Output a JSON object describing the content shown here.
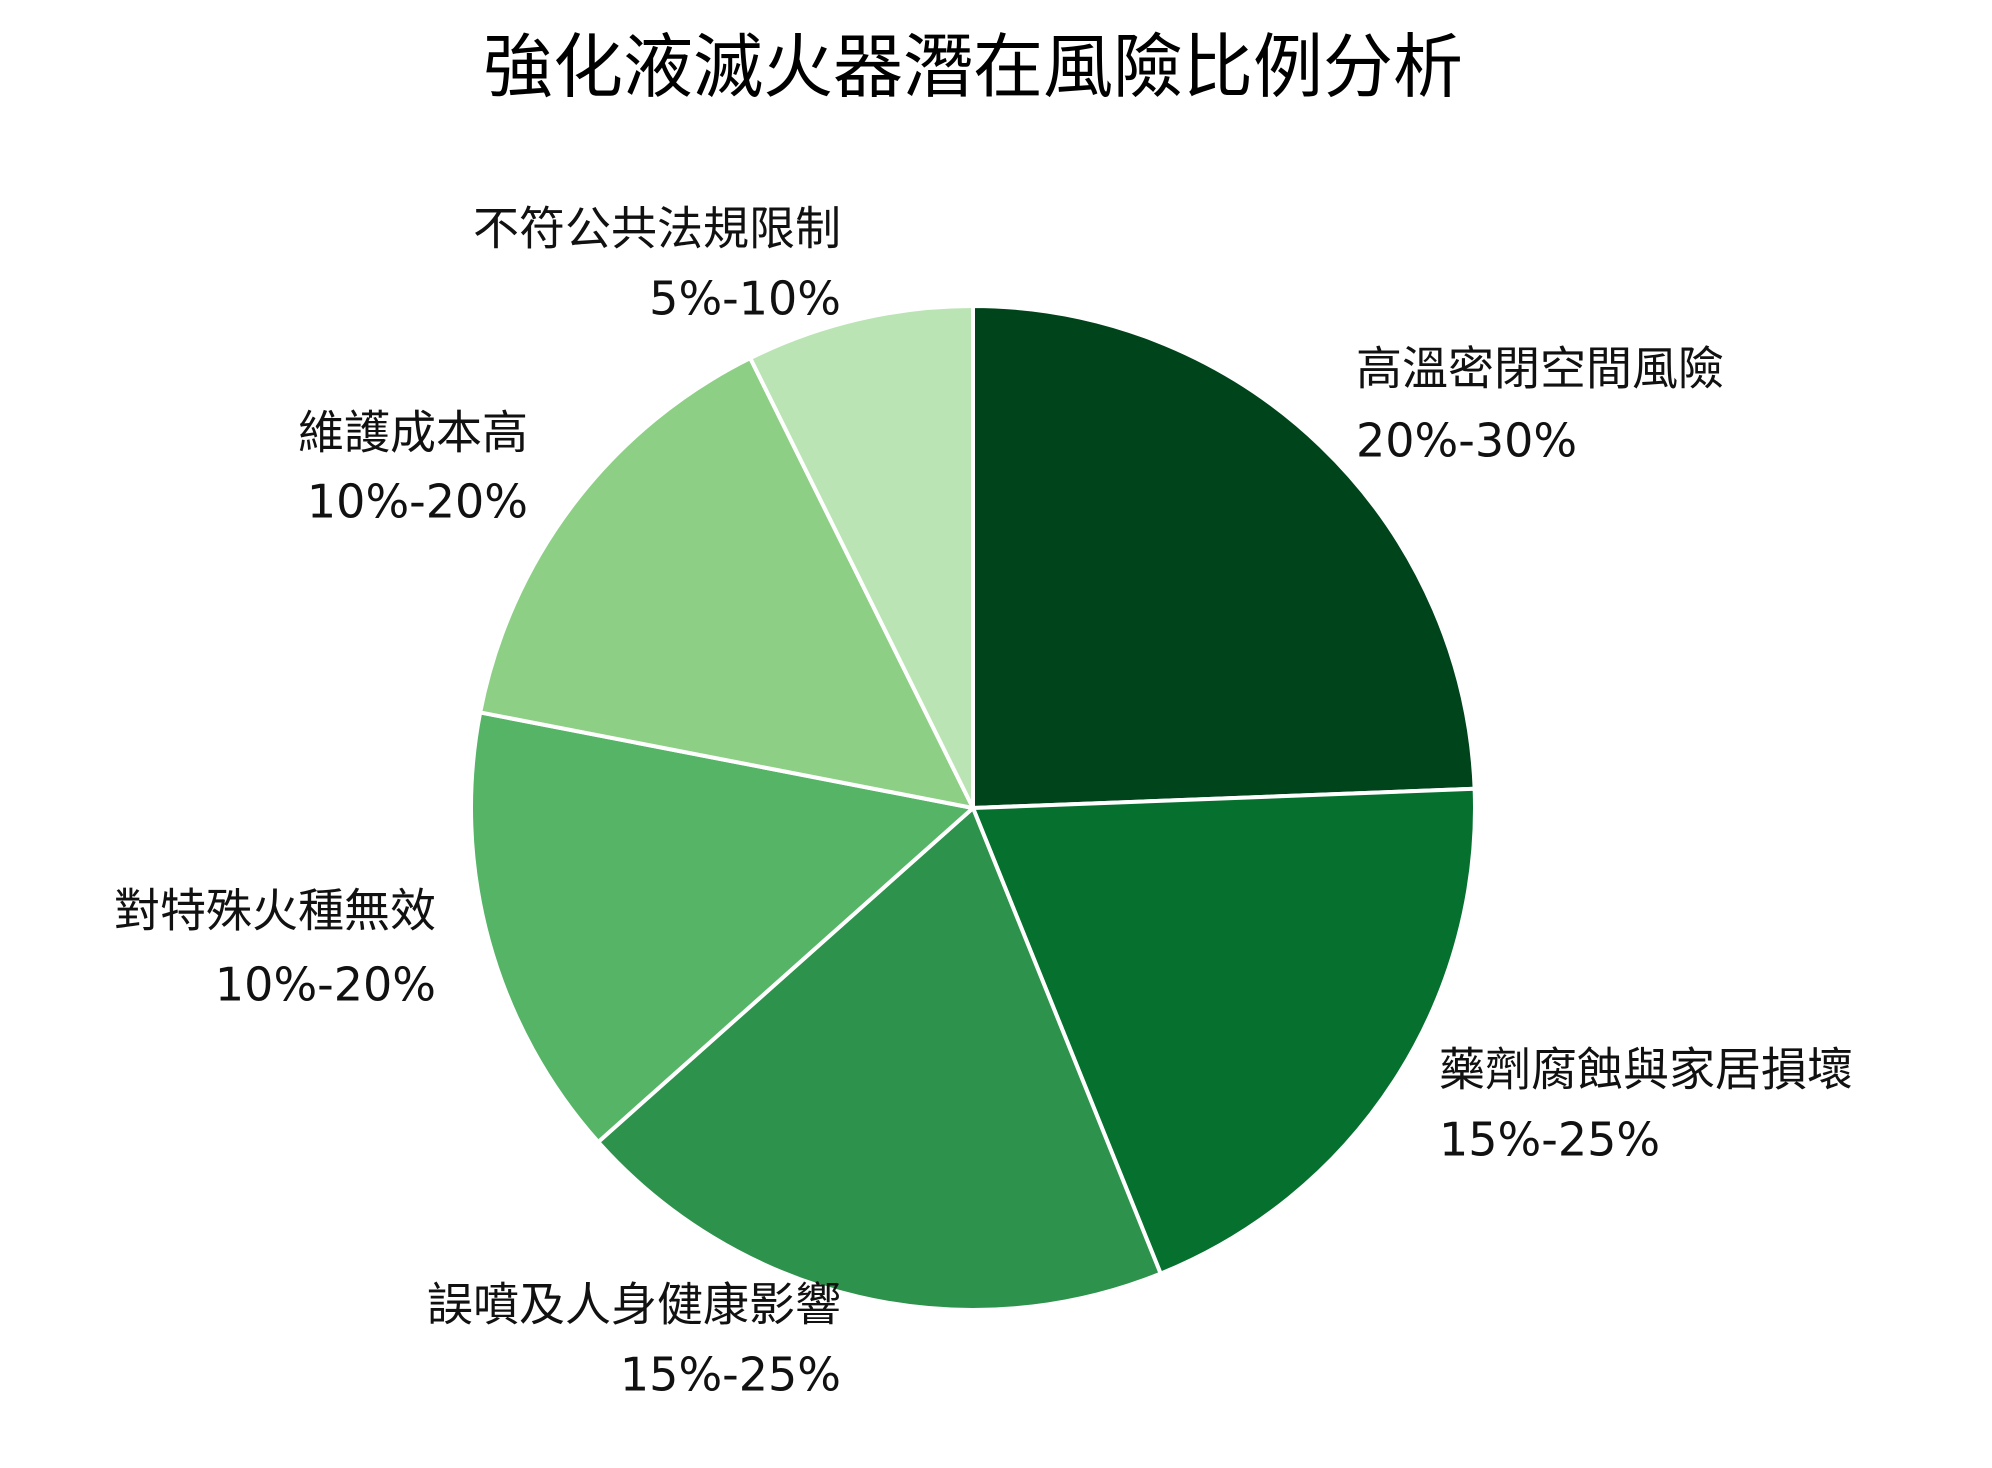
{
  "chart_data": {
    "type": "pie",
    "title": "強化液滅火器潛在風險比例分析",
    "start_angle": "12 o'clock",
    "direction": "clockwise",
    "legend": "none",
    "slices": [
      {
        "label": "高溫密閉空間風險",
        "range": "20%-30%",
        "value": 25,
        "color": "#00441b"
      },
      {
        "label": "藥劑腐蝕與家居損壞",
        "range": "15%-25%",
        "value": 20,
        "color": "#06702f"
      },
      {
        "label": "誤噴及人身健康影響",
        "range": "15%-25%",
        "value": 20,
        "color": "#2d924b"
      },
      {
        "label": "對特殊火種無效",
        "range": "10%-20%",
        "value": 15,
        "color": "#55b466"
      },
      {
        "label": "維護成本高",
        "range": "10%-20%",
        "value": 15,
        "color": "#8ecf86"
      },
      {
        "label": "不符公共法規限制",
        "range": "5%-10%",
        "value": 7.5,
        "color": "#bae4b4"
      }
    ]
  }
}
